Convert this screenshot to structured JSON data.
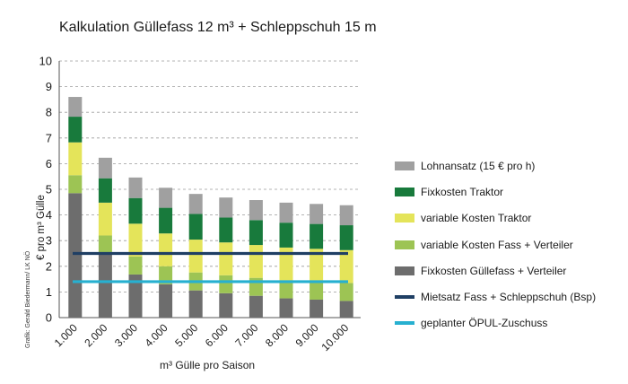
{
  "title": "Kalkulation Güllefass 12 m³ + Schleppschuh 15 m",
  "credit": "Grafik: Gerald Biedermann/ LK NÖ",
  "chart_data": {
    "type": "bar",
    "stacked": true,
    "title": "Kalkulation Güllefass 12 m³ + Schleppschuh 15 m",
    "xlabel": "m³ Gülle pro Saison",
    "ylabel": "€ pro m³ Gülle",
    "ylim": [
      0,
      10
    ],
    "yticks": [
      "0",
      "1",
      "2",
      "3",
      "4",
      "5",
      "6",
      "7",
      "8",
      "9",
      "10"
    ],
    "grid": "dashed-horizontal",
    "legend_position": "right",
    "categories": [
      "1.000",
      "2.000",
      "3.000",
      "4.000",
      "5.000",
      "6.000",
      "7.000",
      "8.000",
      "9.000",
      "10.000"
    ],
    "series": [
      {
        "name": "Fixkosten Güllefass + Verteiler",
        "color": "#6d6d6d",
        "values": [
          4.85,
          2.5,
          1.68,
          1.3,
          1.06,
          0.95,
          0.85,
          0.75,
          0.7,
          0.65
        ]
      },
      {
        "name": "variable Kosten Fass + Verteiler",
        "color": "#9dc454",
        "values": [
          0.7,
          0.7,
          0.7,
          0.7,
          0.7,
          0.7,
          0.7,
          0.7,
          0.7,
          0.7
        ]
      },
      {
        "name": "variable Kosten Traktor",
        "color": "#e4e45a",
        "values": [
          1.28,
          1.28,
          1.28,
          1.28,
          1.28,
          1.28,
          1.28,
          1.28,
          1.28,
          1.28
        ]
      },
      {
        "name": "Fixkosten Traktor",
        "color": "#187a3c",
        "values": [
          1.0,
          0.95,
          1.0,
          1.0,
          1.0,
          0.97,
          0.97,
          0.97,
          0.97,
          0.97
        ]
      },
      {
        "name": "Lohnansatz (15 € pro h)",
        "color": "#a0a0a0",
        "values": [
          0.77,
          0.8,
          0.8,
          0.78,
          0.78,
          0.78,
          0.78,
          0.78,
          0.78,
          0.78
        ]
      }
    ],
    "reference_lines": [
      {
        "name": "Mietsatz Fass + Schleppschuh (Bsp)",
        "color": "#1f3f64",
        "value": 2.5
      },
      {
        "name": "geplanter ÖPUL-Zuschuss",
        "color": "#27b0d0",
        "value": 1.4
      }
    ]
  },
  "legend": [
    {
      "label": "Lohnansatz (15 € pro h)",
      "color": "#a0a0a0",
      "kind": "box"
    },
    {
      "label": "Fixkosten Traktor",
      "color": "#187a3c",
      "kind": "box"
    },
    {
      "label": "variable Kosten Traktor",
      "color": "#e4e45a",
      "kind": "box"
    },
    {
      "label": "variable Kosten Fass + Verteiler",
      "color": "#9dc454",
      "kind": "box"
    },
    {
      "label": "Fixkosten Güllefass + Verteiler",
      "color": "#6d6d6d",
      "kind": "box"
    },
    {
      "label": "Mietsatz Fass + Schleppschuh (Bsp)",
      "color": "#1f3f64",
      "kind": "line"
    },
    {
      "label": "geplanter ÖPUL-Zuschuss",
      "color": "#27b0d0",
      "kind": "line"
    }
  ]
}
